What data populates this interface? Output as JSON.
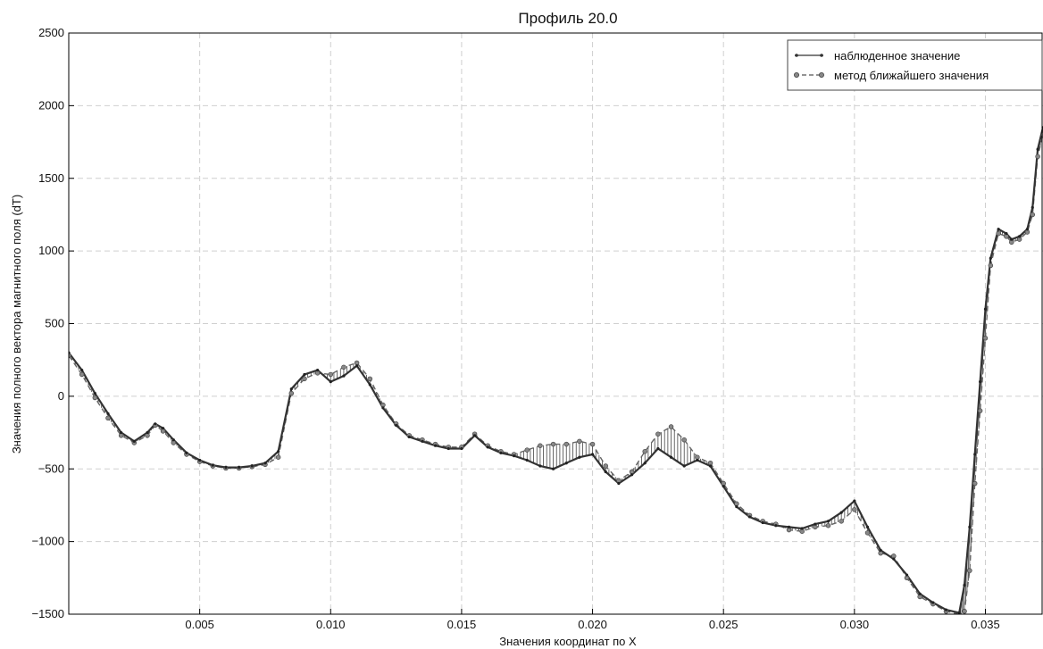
{
  "chart_data": {
    "type": "line",
    "title": "Профиль 20.0",
    "xlabel": "Значения координат по X",
    "ylabel": "Значения полного вектора магнитного поля (dT)",
    "xlim": [
      0.0,
      0.0372
    ],
    "ylim": [
      -1500,
      2500
    ],
    "x_ticks": [
      0.005,
      0.01,
      0.015,
      0.02,
      0.025,
      0.03,
      0.035
    ],
    "x_tick_labels": [
      "0.005",
      "0.010",
      "0.015",
      "0.020",
      "0.025",
      "0.030",
      "0.035"
    ],
    "y_ticks": [
      -1500,
      -1000,
      -500,
      0,
      500,
      1000,
      1500,
      2000,
      2500
    ],
    "y_tick_labels": [
      "−1500",
      "−1000",
      "−500",
      "0",
      "500",
      "1000",
      "1500",
      "2000",
      "2500"
    ],
    "grid": true,
    "legend_position": "top-right",
    "series": [
      {
        "name": "наблюденное значение",
        "style": "solid line, small dot markers",
        "color": "#333333",
        "points": [
          [
            0.0,
            300
          ],
          [
            0.0005,
            180
          ],
          [
            0.001,
            20
          ],
          [
            0.0015,
            -120
          ],
          [
            0.002,
            -250
          ],
          [
            0.0025,
            -310
          ],
          [
            0.003,
            -250
          ],
          [
            0.0033,
            -190
          ],
          [
            0.0036,
            -220
          ],
          [
            0.004,
            -300
          ],
          [
            0.0045,
            -390
          ],
          [
            0.005,
            -440
          ],
          [
            0.0055,
            -475
          ],
          [
            0.006,
            -490
          ],
          [
            0.0065,
            -490
          ],
          [
            0.007,
            -480
          ],
          [
            0.0075,
            -460
          ],
          [
            0.008,
            -380
          ],
          [
            0.0085,
            50
          ],
          [
            0.009,
            150
          ],
          [
            0.0095,
            180
          ],
          [
            0.01,
            100
          ],
          [
            0.0105,
            140
          ],
          [
            0.011,
            210
          ],
          [
            0.0115,
            80
          ],
          [
            0.012,
            -80
          ],
          [
            0.0125,
            -200
          ],
          [
            0.013,
            -280
          ],
          [
            0.0135,
            -310
          ],
          [
            0.014,
            -340
          ],
          [
            0.0145,
            -360
          ],
          [
            0.015,
            -360
          ],
          [
            0.0155,
            -270
          ],
          [
            0.016,
            -350
          ],
          [
            0.0165,
            -390
          ],
          [
            0.017,
            -410
          ],
          [
            0.0175,
            -440
          ],
          [
            0.018,
            -480
          ],
          [
            0.0185,
            -500
          ],
          [
            0.019,
            -460
          ],
          [
            0.0195,
            -420
          ],
          [
            0.02,
            -400
          ],
          [
            0.0205,
            -520
          ],
          [
            0.021,
            -600
          ],
          [
            0.0215,
            -540
          ],
          [
            0.022,
            -460
          ],
          [
            0.0225,
            -360
          ],
          [
            0.023,
            -420
          ],
          [
            0.0235,
            -480
          ],
          [
            0.024,
            -440
          ],
          [
            0.0245,
            -480
          ],
          [
            0.025,
            -620
          ],
          [
            0.0255,
            -760
          ],
          [
            0.026,
            -830
          ],
          [
            0.0265,
            -870
          ],
          [
            0.027,
            -890
          ],
          [
            0.0275,
            -900
          ],
          [
            0.028,
            -910
          ],
          [
            0.0285,
            -880
          ],
          [
            0.029,
            -860
          ],
          [
            0.0295,
            -800
          ],
          [
            0.03,
            -720
          ],
          [
            0.0305,
            -900
          ],
          [
            0.031,
            -1060
          ],
          [
            0.0315,
            -1120
          ],
          [
            0.032,
            -1230
          ],
          [
            0.0325,
            -1360
          ],
          [
            0.033,
            -1420
          ],
          [
            0.0335,
            -1470
          ],
          [
            0.034,
            -1490
          ],
          [
            0.0342,
            -1300
          ],
          [
            0.0344,
            -900
          ],
          [
            0.0346,
            -400
          ],
          [
            0.0348,
            100
          ],
          [
            0.035,
            600
          ],
          [
            0.0352,
            950
          ],
          [
            0.0355,
            1150
          ],
          [
            0.0358,
            1120
          ],
          [
            0.036,
            1080
          ],
          [
            0.0363,
            1100
          ],
          [
            0.0366,
            1150
          ],
          [
            0.0368,
            1300
          ],
          [
            0.037,
            1700
          ],
          [
            0.0372,
            1850
          ]
        ]
      },
      {
        "name": "метод ближайшего значения",
        "style": "dashed line, round markers",
        "color": "#555555",
        "points": [
          [
            0.0,
            280
          ],
          [
            0.0005,
            150
          ],
          [
            0.001,
            -10
          ],
          [
            0.0015,
            -150
          ],
          [
            0.002,
            -270
          ],
          [
            0.0025,
            -320
          ],
          [
            0.003,
            -270
          ],
          [
            0.0033,
            -200
          ],
          [
            0.0036,
            -240
          ],
          [
            0.004,
            -320
          ],
          [
            0.0045,
            -400
          ],
          [
            0.005,
            -450
          ],
          [
            0.0055,
            -480
          ],
          [
            0.006,
            -495
          ],
          [
            0.0065,
            -495
          ],
          [
            0.007,
            -485
          ],
          [
            0.0075,
            -470
          ],
          [
            0.008,
            -420
          ],
          [
            0.0085,
            20
          ],
          [
            0.009,
            120
          ],
          [
            0.0095,
            160
          ],
          [
            0.01,
            150
          ],
          [
            0.0105,
            200
          ],
          [
            0.011,
            230
          ],
          [
            0.0115,
            120
          ],
          [
            0.012,
            -60
          ],
          [
            0.0125,
            -190
          ],
          [
            0.013,
            -270
          ],
          [
            0.0135,
            -300
          ],
          [
            0.014,
            -330
          ],
          [
            0.0145,
            -350
          ],
          [
            0.015,
            -350
          ],
          [
            0.0155,
            -260
          ],
          [
            0.016,
            -340
          ],
          [
            0.0165,
            -380
          ],
          [
            0.017,
            -400
          ],
          [
            0.0175,
            -370
          ],
          [
            0.018,
            -340
          ],
          [
            0.0185,
            -330
          ],
          [
            0.019,
            -330
          ],
          [
            0.0195,
            -310
          ],
          [
            0.02,
            -330
          ],
          [
            0.0205,
            -480
          ],
          [
            0.021,
            -580
          ],
          [
            0.0215,
            -520
          ],
          [
            0.022,
            -380
          ],
          [
            0.0225,
            -260
          ],
          [
            0.023,
            -210
          ],
          [
            0.0235,
            -300
          ],
          [
            0.024,
            -420
          ],
          [
            0.0245,
            -460
          ],
          [
            0.025,
            -600
          ],
          [
            0.0255,
            -740
          ],
          [
            0.026,
            -820
          ],
          [
            0.0265,
            -860
          ],
          [
            0.027,
            -880
          ],
          [
            0.0275,
            -920
          ],
          [
            0.028,
            -930
          ],
          [
            0.0285,
            -900
          ],
          [
            0.029,
            -890
          ],
          [
            0.0295,
            -860
          ],
          [
            0.03,
            -780
          ],
          [
            0.0305,
            -940
          ],
          [
            0.031,
            -1080
          ],
          [
            0.0315,
            -1100
          ],
          [
            0.032,
            -1250
          ],
          [
            0.0325,
            -1380
          ],
          [
            0.033,
            -1430
          ],
          [
            0.0335,
            -1480
          ],
          [
            0.034,
            -1500
          ],
          [
            0.0342,
            -1480
          ],
          [
            0.0344,
            -1200
          ],
          [
            0.0346,
            -600
          ],
          [
            0.0348,
            -100
          ],
          [
            0.035,
            400
          ],
          [
            0.0352,
            900
          ],
          [
            0.0355,
            1120
          ],
          [
            0.0358,
            1100
          ],
          [
            0.036,
            1060
          ],
          [
            0.0363,
            1080
          ],
          [
            0.0366,
            1130
          ],
          [
            0.0368,
            1250
          ],
          [
            0.037,
            1650
          ],
          [
            0.0372,
            1800
          ]
        ]
      }
    ]
  }
}
